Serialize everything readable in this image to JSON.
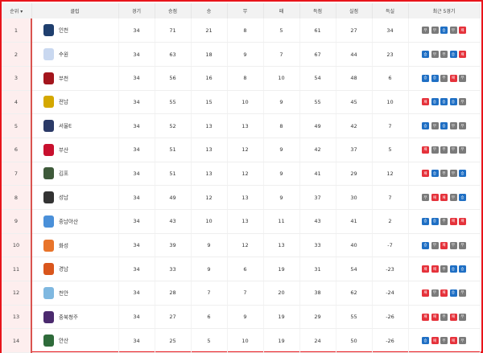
{
  "headers": [
    "순위 ▾",
    "클럽",
    "경기",
    "승점",
    "승",
    "무",
    "패",
    "득점",
    "실점",
    "득실",
    "최근 5경기"
  ],
  "result_colors": {
    "승": "#1f6fc4",
    "무": "#7a7a7a",
    "패": "#e5323b"
  },
  "rows": [
    {
      "rank": "1",
      "club": "인천",
      "logo": "#1f3f6e",
      "played": "34",
      "pts": "71",
      "w": "21",
      "d": "8",
      "l": "5",
      "gf": "61",
      "ga": "27",
      "gd": "34",
      "recent": [
        "무",
        "무",
        "승",
        "무",
        "패"
      ]
    },
    {
      "rank": "2",
      "club": "수원",
      "logo": "#c9d8f0",
      "played": "34",
      "pts": "63",
      "w": "18",
      "d": "9",
      "l": "7",
      "gf": "67",
      "ga": "44",
      "gd": "23",
      "recent": [
        "승",
        "무",
        "무",
        "승",
        "패"
      ]
    },
    {
      "rank": "3",
      "club": "부천",
      "logo": "#a3151c",
      "played": "34",
      "pts": "56",
      "w": "16",
      "d": "8",
      "l": "10",
      "gf": "54",
      "ga": "48",
      "gd": "6",
      "recent": [
        "승",
        "승",
        "무",
        "패",
        "무"
      ]
    },
    {
      "rank": "4",
      "club": "전남",
      "logo": "#d4a800",
      "played": "34",
      "pts": "55",
      "w": "15",
      "d": "10",
      "l": "9",
      "gf": "55",
      "ga": "45",
      "gd": "10",
      "recent": [
        "패",
        "승",
        "승",
        "승",
        "무"
      ]
    },
    {
      "rank": "5",
      "club": "서울E",
      "logo": "#2b3a67",
      "played": "34",
      "pts": "52",
      "w": "13",
      "d": "13",
      "l": "8",
      "gf": "49",
      "ga": "42",
      "gd": "7",
      "recent": [
        "승",
        "무",
        "승",
        "무",
        "무"
      ]
    },
    {
      "rank": "6",
      "club": "부산",
      "logo": "#c8102e",
      "played": "34",
      "pts": "51",
      "w": "13",
      "d": "12",
      "l": "9",
      "gf": "42",
      "ga": "37",
      "gd": "5",
      "recent": [
        "패",
        "무",
        "무",
        "무",
        "무"
      ]
    },
    {
      "rank": "7",
      "club": "김포",
      "logo": "#3e5a3a",
      "played": "34",
      "pts": "51",
      "w": "13",
      "d": "12",
      "l": "9",
      "gf": "41",
      "ga": "29",
      "gd": "12",
      "recent": [
        "패",
        "승",
        "무",
        "무",
        "승"
      ]
    },
    {
      "rank": "8",
      "club": "성남",
      "logo": "#333333",
      "played": "34",
      "pts": "49",
      "w": "12",
      "d": "13",
      "l": "9",
      "gf": "37",
      "ga": "30",
      "gd": "7",
      "recent": [
        "무",
        "패",
        "패",
        "무",
        "승"
      ]
    },
    {
      "rank": "9",
      "club": "충남아산",
      "logo": "#4a90d9",
      "played": "34",
      "pts": "43",
      "w": "10",
      "d": "13",
      "l": "11",
      "gf": "43",
      "ga": "41",
      "gd": "2",
      "recent": [
        "승",
        "승",
        "무",
        "패",
        "패"
      ]
    },
    {
      "rank": "10",
      "club": "화성",
      "logo": "#e8742a",
      "played": "34",
      "pts": "39",
      "w": "9",
      "d": "12",
      "l": "13",
      "gf": "33",
      "ga": "40",
      "gd": "-7",
      "recent": [
        "승",
        "무",
        "패",
        "무",
        "무"
      ]
    },
    {
      "rank": "11",
      "club": "경남",
      "logo": "#d9561c",
      "played": "34",
      "pts": "33",
      "w": "9",
      "d": "6",
      "l": "19",
      "gf": "31",
      "ga": "54",
      "gd": "-23",
      "recent": [
        "패",
        "패",
        "무",
        "승",
        "승"
      ]
    },
    {
      "rank": "12",
      "club": "천안",
      "logo": "#7fb8e0",
      "played": "34",
      "pts": "28",
      "w": "7",
      "d": "7",
      "l": "20",
      "gf": "38",
      "ga": "62",
      "gd": "-24",
      "recent": [
        "패",
        "무",
        "패",
        "승",
        "무"
      ]
    },
    {
      "rank": "13",
      "club": "충북청주",
      "logo": "#4b2a6e",
      "played": "34",
      "pts": "27",
      "w": "6",
      "d": "9",
      "l": "19",
      "gf": "29",
      "ga": "55",
      "gd": "-26",
      "recent": [
        "패",
        "패",
        "무",
        "패",
        "무"
      ]
    },
    {
      "rank": "14",
      "club": "안산",
      "logo": "#2e6b3a",
      "played": "34",
      "pts": "25",
      "w": "5",
      "d": "10",
      "l": "19",
      "gf": "24",
      "ga": "50",
      "gd": "-26",
      "recent": [
        "승",
        "패",
        "무",
        "패",
        "무"
      ]
    }
  ]
}
